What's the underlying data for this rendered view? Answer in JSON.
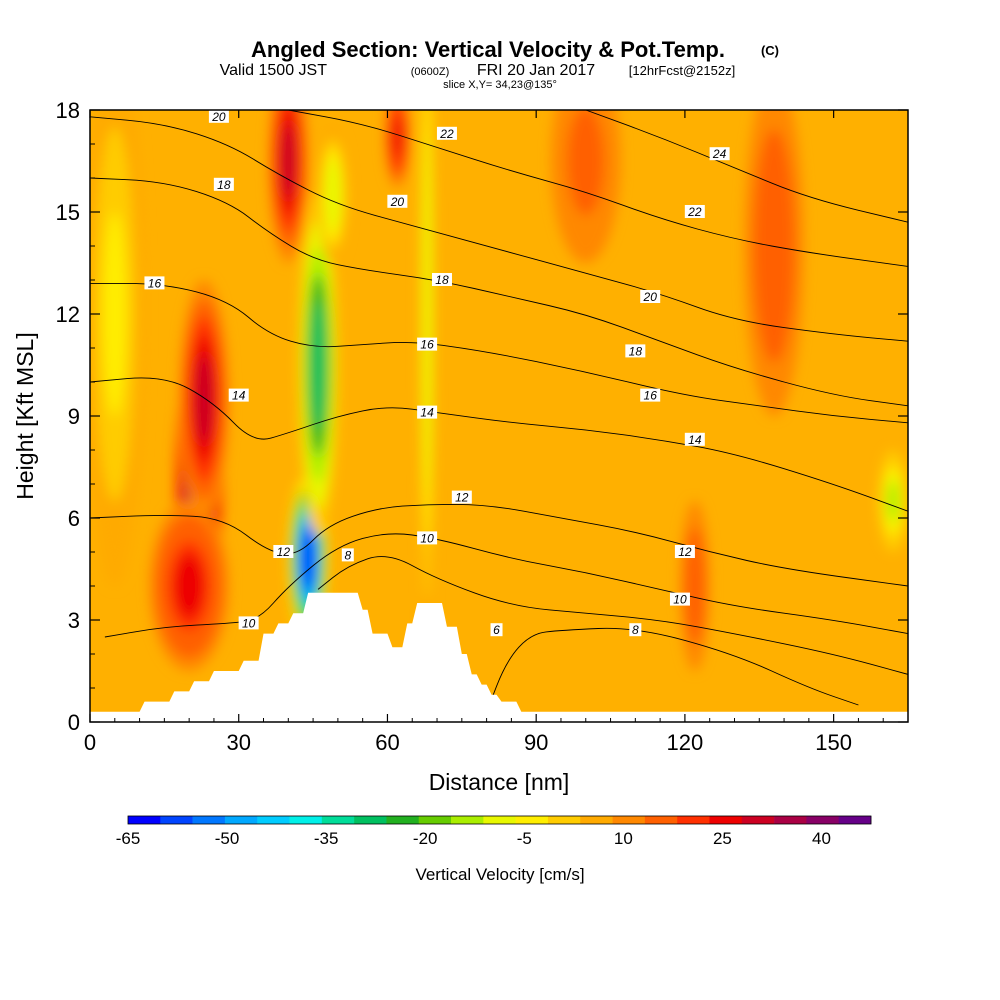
{
  "chart_data": {
    "type": "heatmap",
    "title": "Angled Section: Vertical Velocity & Pot.Temp.",
    "title_unit": "(C)",
    "subtitle_valid": "Valid 1500 JST",
    "subtitle_utc": "(0600Z)",
    "subtitle_date": "FRI 20 Jan 2017",
    "subtitle_forecast": "[12hrFcst@2152z]",
    "subtitle_slice": "slice X,Y= 34,23@135°",
    "xlabel": "Distance [nm]",
    "ylabel": "Height [Kft MSL]",
    "xlim": [
      0,
      165
    ],
    "ylim": [
      0,
      18
    ],
    "x_ticks": [
      "0",
      "30",
      "60",
      "90",
      "120",
      "150"
    ],
    "y_ticks": [
      "0",
      "3",
      "6",
      "9",
      "12",
      "15",
      "18"
    ],
    "colorbar": {
      "title": "Vertical Velocity [cm/s]",
      "tick_labels": [
        "-65",
        "-50",
        "-35",
        "-20",
        "-5",
        "10",
        "25",
        "40"
      ],
      "colors": [
        "#0000ff",
        "#0044ff",
        "#0077ff",
        "#00a8ff",
        "#00ccff",
        "#00f0e8",
        "#00dd99",
        "#00c060",
        "#22b020",
        "#66cc00",
        "#aaee00",
        "#e8f800",
        "#ffee00",
        "#ffcc00",
        "#ffaa00",
        "#ff8800",
        "#ff6000",
        "#ff3000",
        "#ee0000",
        "#cc0022",
        "#aa0044",
        "#880066",
        "#660088"
      ],
      "vmin": -65,
      "vmax": 47.5
    },
    "background_fill": "#ffb000",
    "velocity_features": [
      {
        "kind": "updraft",
        "center_x": 22,
        "center_h": 7.0,
        "width": 5,
        "height": 4.0,
        "value": 45
      },
      {
        "kind": "updraft",
        "center_x": 23,
        "center_h": 9.5,
        "width": 5,
        "height": 3.5,
        "value": 28
      },
      {
        "kind": "updraft",
        "center_x": 20,
        "center_h": 4.0,
        "width": 8,
        "height": 2.5,
        "value": 24
      },
      {
        "kind": "updraft",
        "center_x": 40,
        "center_h": 16.5,
        "width": 4,
        "height": 3.0,
        "value": 28
      },
      {
        "kind": "downdraft",
        "center_x": 44,
        "center_h": 4.8,
        "width": 4,
        "height": 2.5,
        "value": -60
      },
      {
        "kind": "downdraft",
        "center_x": 46,
        "center_h": 10.5,
        "width": 4,
        "height": 5.0,
        "value": -30
      },
      {
        "kind": "downdraft",
        "center_x": 49,
        "center_h": 15.5,
        "width": 3,
        "height": 2.0,
        "value": -10
      },
      {
        "kind": "downdraft",
        "center_x": 68,
        "center_h": 12.0,
        "width": 1.5,
        "height": 10.0,
        "value": -10
      },
      {
        "kind": "updraft",
        "center_x": 62,
        "center_h": 17.2,
        "width": 2.5,
        "height": 1.5,
        "value": 25
      },
      {
        "kind": "updraft",
        "center_x": 100,
        "center_h": 16.5,
        "width": 7,
        "height": 3.0,
        "value": 16
      },
      {
        "kind": "updraft",
        "center_x": 138,
        "center_h": 14.0,
        "width": 6,
        "height": 5.0,
        "value": 18
      },
      {
        "kind": "updraft",
        "center_x": 122,
        "center_h": 4.0,
        "width": 3,
        "height": 2.5,
        "value": 18
      },
      {
        "kind": "weak",
        "center_x": 5,
        "center_h": 12.0,
        "width": 6,
        "height": 8.0,
        "value": -3
      },
      {
        "kind": "weak",
        "center_x": 162,
        "center_h": 6.5,
        "width": 3,
        "height": 1.5,
        "value": -15
      }
    ],
    "terrain": [
      {
        "x": 0,
        "h": 0.3
      },
      {
        "x": 10,
        "h": 0.3
      },
      {
        "x": 11,
        "h": 0.6
      },
      {
        "x": 16,
        "h": 0.6
      },
      {
        "x": 17,
        "h": 0.9
      },
      {
        "x": 20,
        "h": 0.9
      },
      {
        "x": 21,
        "h": 1.2
      },
      {
        "x": 24,
        "h": 1.2
      },
      {
        "x": 25,
        "h": 1.5
      },
      {
        "x": 30,
        "h": 1.5
      },
      {
        "x": 31,
        "h": 1.8
      },
      {
        "x": 34,
        "h": 1.8
      },
      {
        "x": 35,
        "h": 2.6
      },
      {
        "x": 37,
        "h": 2.6
      },
      {
        "x": 38,
        "h": 2.9
      },
      {
        "x": 40,
        "h": 2.9
      },
      {
        "x": 41,
        "h": 3.2
      },
      {
        "x": 43,
        "h": 3.2
      },
      {
        "x": 44,
        "h": 3.8
      },
      {
        "x": 54,
        "h": 3.8
      },
      {
        "x": 55,
        "h": 3.3
      },
      {
        "x": 56,
        "h": 3.3
      },
      {
        "x": 57,
        "h": 2.6
      },
      {
        "x": 60,
        "h": 2.6
      },
      {
        "x": 61,
        "h": 2.2
      },
      {
        "x": 63,
        "h": 2.2
      },
      {
        "x": 64,
        "h": 2.9
      },
      {
        "x": 65,
        "h": 2.9
      },
      {
        "x": 66,
        "h": 3.5
      },
      {
        "x": 71,
        "h": 3.5
      },
      {
        "x": 72,
        "h": 2.8
      },
      {
        "x": 74,
        "h": 2.8
      },
      {
        "x": 75,
        "h": 2.0
      },
      {
        "x": 76,
        "h": 2.0
      },
      {
        "x": 77,
        "h": 1.4
      },
      {
        "x": 78,
        "h": 1.4
      },
      {
        "x": 79,
        "h": 1.1
      },
      {
        "x": 80,
        "h": 1.1
      },
      {
        "x": 81,
        "h": 0.8
      },
      {
        "x": 82,
        "h": 0.8
      },
      {
        "x": 83,
        "h": 0.6
      },
      {
        "x": 86,
        "h": 0.6
      },
      {
        "x": 87,
        "h": 0.3
      },
      {
        "x": 165,
        "h": 0.3
      }
    ],
    "theta_contours": [
      {
        "level": "6",
        "points": [
          [
            80,
            0.3
          ],
          [
            84,
            1.8
          ],
          [
            89,
            2.6
          ],
          [
            95,
            2.7
          ],
          [
            110,
            2.8
          ],
          [
            130,
            2.0
          ],
          [
            145,
            1.0
          ],
          [
            155,
            0.5
          ]
        ]
      },
      {
        "level": "8",
        "points": [
          [
            46,
            3.9
          ],
          [
            52,
            4.6
          ],
          [
            60,
            5.0
          ],
          [
            70,
            4.2
          ],
          [
            85,
            3.4
          ],
          [
            100,
            3.2
          ],
          [
            115,
            3.0
          ],
          [
            130,
            2.6
          ],
          [
            150,
            2.0
          ],
          [
            165,
            1.4
          ]
        ]
      },
      {
        "level": "10",
        "points": [
          [
            3,
            2.5
          ],
          [
            15,
            2.8
          ],
          [
            28,
            2.9
          ],
          [
            34,
            3.0
          ],
          [
            40,
            4.0
          ],
          [
            50,
            5.2
          ],
          [
            60,
            5.6
          ],
          [
            70,
            5.4
          ],
          [
            85,
            4.8
          ],
          [
            100,
            4.4
          ],
          [
            115,
            3.9
          ],
          [
            130,
            3.4
          ],
          [
            150,
            3.0
          ],
          [
            165,
            2.6
          ]
        ]
      },
      {
        "level": "12",
        "points": [
          [
            0,
            6.0
          ],
          [
            15,
            6.1
          ],
          [
            27,
            6.0
          ],
          [
            36,
            5.0
          ],
          [
            42,
            4.9
          ],
          [
            48,
            5.8
          ],
          [
            58,
            6.3
          ],
          [
            68,
            6.4
          ],
          [
            80,
            6.4
          ],
          [
            95,
            6.0
          ],
          [
            110,
            5.6
          ],
          [
            125,
            5.0
          ],
          [
            140,
            4.5
          ],
          [
            165,
            4.0
          ]
        ]
      },
      {
        "level": "14",
        "points": [
          [
            0,
            10.0
          ],
          [
            15,
            10.2
          ],
          [
            25,
            9.4
          ],
          [
            33,
            8.2
          ],
          [
            40,
            8.5
          ],
          [
            50,
            9.0
          ],
          [
            60,
            9.3
          ],
          [
            70,
            9.1
          ],
          [
            85,
            8.8
          ],
          [
            100,
            8.6
          ],
          [
            115,
            8.3
          ],
          [
            130,
            7.9
          ],
          [
            150,
            7.0
          ],
          [
            165,
            6.2
          ]
        ]
      },
      {
        "level": "16",
        "points": [
          [
            0,
            12.9
          ],
          [
            15,
            12.9
          ],
          [
            28,
            12.4
          ],
          [
            36,
            11.4
          ],
          [
            45,
            11.0
          ],
          [
            55,
            11.1
          ],
          [
            65,
            11.2
          ],
          [
            80,
            10.9
          ],
          [
            100,
            10.3
          ],
          [
            120,
            9.6
          ],
          [
            135,
            9.3
          ],
          [
            150,
            9.0
          ],
          [
            165,
            8.8
          ]
        ]
      },
      {
        "level": "18",
        "points": [
          [
            0,
            16.0
          ],
          [
            15,
            15.9
          ],
          [
            28,
            15.3
          ],
          [
            36,
            14.4
          ],
          [
            45,
            13.6
          ],
          [
            55,
            13.3
          ],
          [
            70,
            13.0
          ],
          [
            85,
            12.5
          ],
          [
            100,
            12.0
          ],
          [
            115,
            11.2
          ],
          [
            130,
            10.4
          ],
          [
            150,
            9.6
          ],
          [
            165,
            9.3
          ]
        ]
      },
      {
        "level": "20",
        "points": [
          [
            0,
            17.8
          ],
          [
            15,
            17.6
          ],
          [
            28,
            17.0
          ],
          [
            38,
            16.1
          ],
          [
            50,
            15.2
          ],
          [
            65,
            14.6
          ],
          [
            80,
            14.0
          ],
          [
            100,
            13.2
          ],
          [
            115,
            12.6
          ],
          [
            130,
            11.8
          ],
          [
            150,
            11.4
          ],
          [
            165,
            11.2
          ]
        ]
      },
      {
        "level": "22",
        "points": [
          [
            40,
            18.0
          ],
          [
            55,
            17.6
          ],
          [
            70,
            16.9
          ],
          [
            85,
            16.2
          ],
          [
            100,
            15.6
          ],
          [
            115,
            14.8
          ],
          [
            130,
            14.2
          ],
          [
            145,
            13.8
          ],
          [
            165,
            13.4
          ]
        ]
      },
      {
        "level": "24",
        "points": [
          [
            100,
            18.0
          ],
          [
            115,
            17.2
          ],
          [
            130,
            16.3
          ],
          [
            145,
            15.4
          ],
          [
            165,
            14.7
          ]
        ]
      }
    ],
    "contour_labels": [
      {
        "text": "20",
        "x": 26,
        "h": 17.8
      },
      {
        "text": "22",
        "x": 72,
        "h": 17.3
      },
      {
        "text": "24",
        "x": 127,
        "h": 16.7
      },
      {
        "text": "18",
        "x": 27,
        "h": 15.8
      },
      {
        "text": "20",
        "x": 62,
        "h": 15.3
      },
      {
        "text": "22",
        "x": 122,
        "h": 15.0
      },
      {
        "text": "16",
        "x": 13,
        "h": 12.9
      },
      {
        "text": "18",
        "x": 71,
        "h": 13.0
      },
      {
        "text": "20",
        "x": 113,
        "h": 12.5
      },
      {
        "text": "16",
        "x": 68,
        "h": 11.1
      },
      {
        "text": "18",
        "x": 110,
        "h": 10.9
      },
      {
        "text": "14",
        "x": 30,
        "h": 9.6
      },
      {
        "text": "16",
        "x": 113,
        "h": 9.6
      },
      {
        "text": "14",
        "x": 68,
        "h": 9.1
      },
      {
        "text": "14",
        "x": 122,
        "h": 8.3
      },
      {
        "text": "12",
        "x": 75,
        "h": 6.6
      },
      {
        "text": "10",
        "x": 68,
        "h": 5.4
      },
      {
        "text": "12",
        "x": 120,
        "h": 5.0
      },
      {
        "text": "12",
        "x": 39,
        "h": 5.0
      },
      {
        "text": "8",
        "x": 52,
        "h": 4.9
      },
      {
        "text": "10",
        "x": 119,
        "h": 3.6
      },
      {
        "text": "10",
        "x": 32,
        "h": 2.9
      },
      {
        "text": "6",
        "x": 82,
        "h": 2.7
      },
      {
        "text": "8",
        "x": 110,
        "h": 2.7
      }
    ]
  }
}
